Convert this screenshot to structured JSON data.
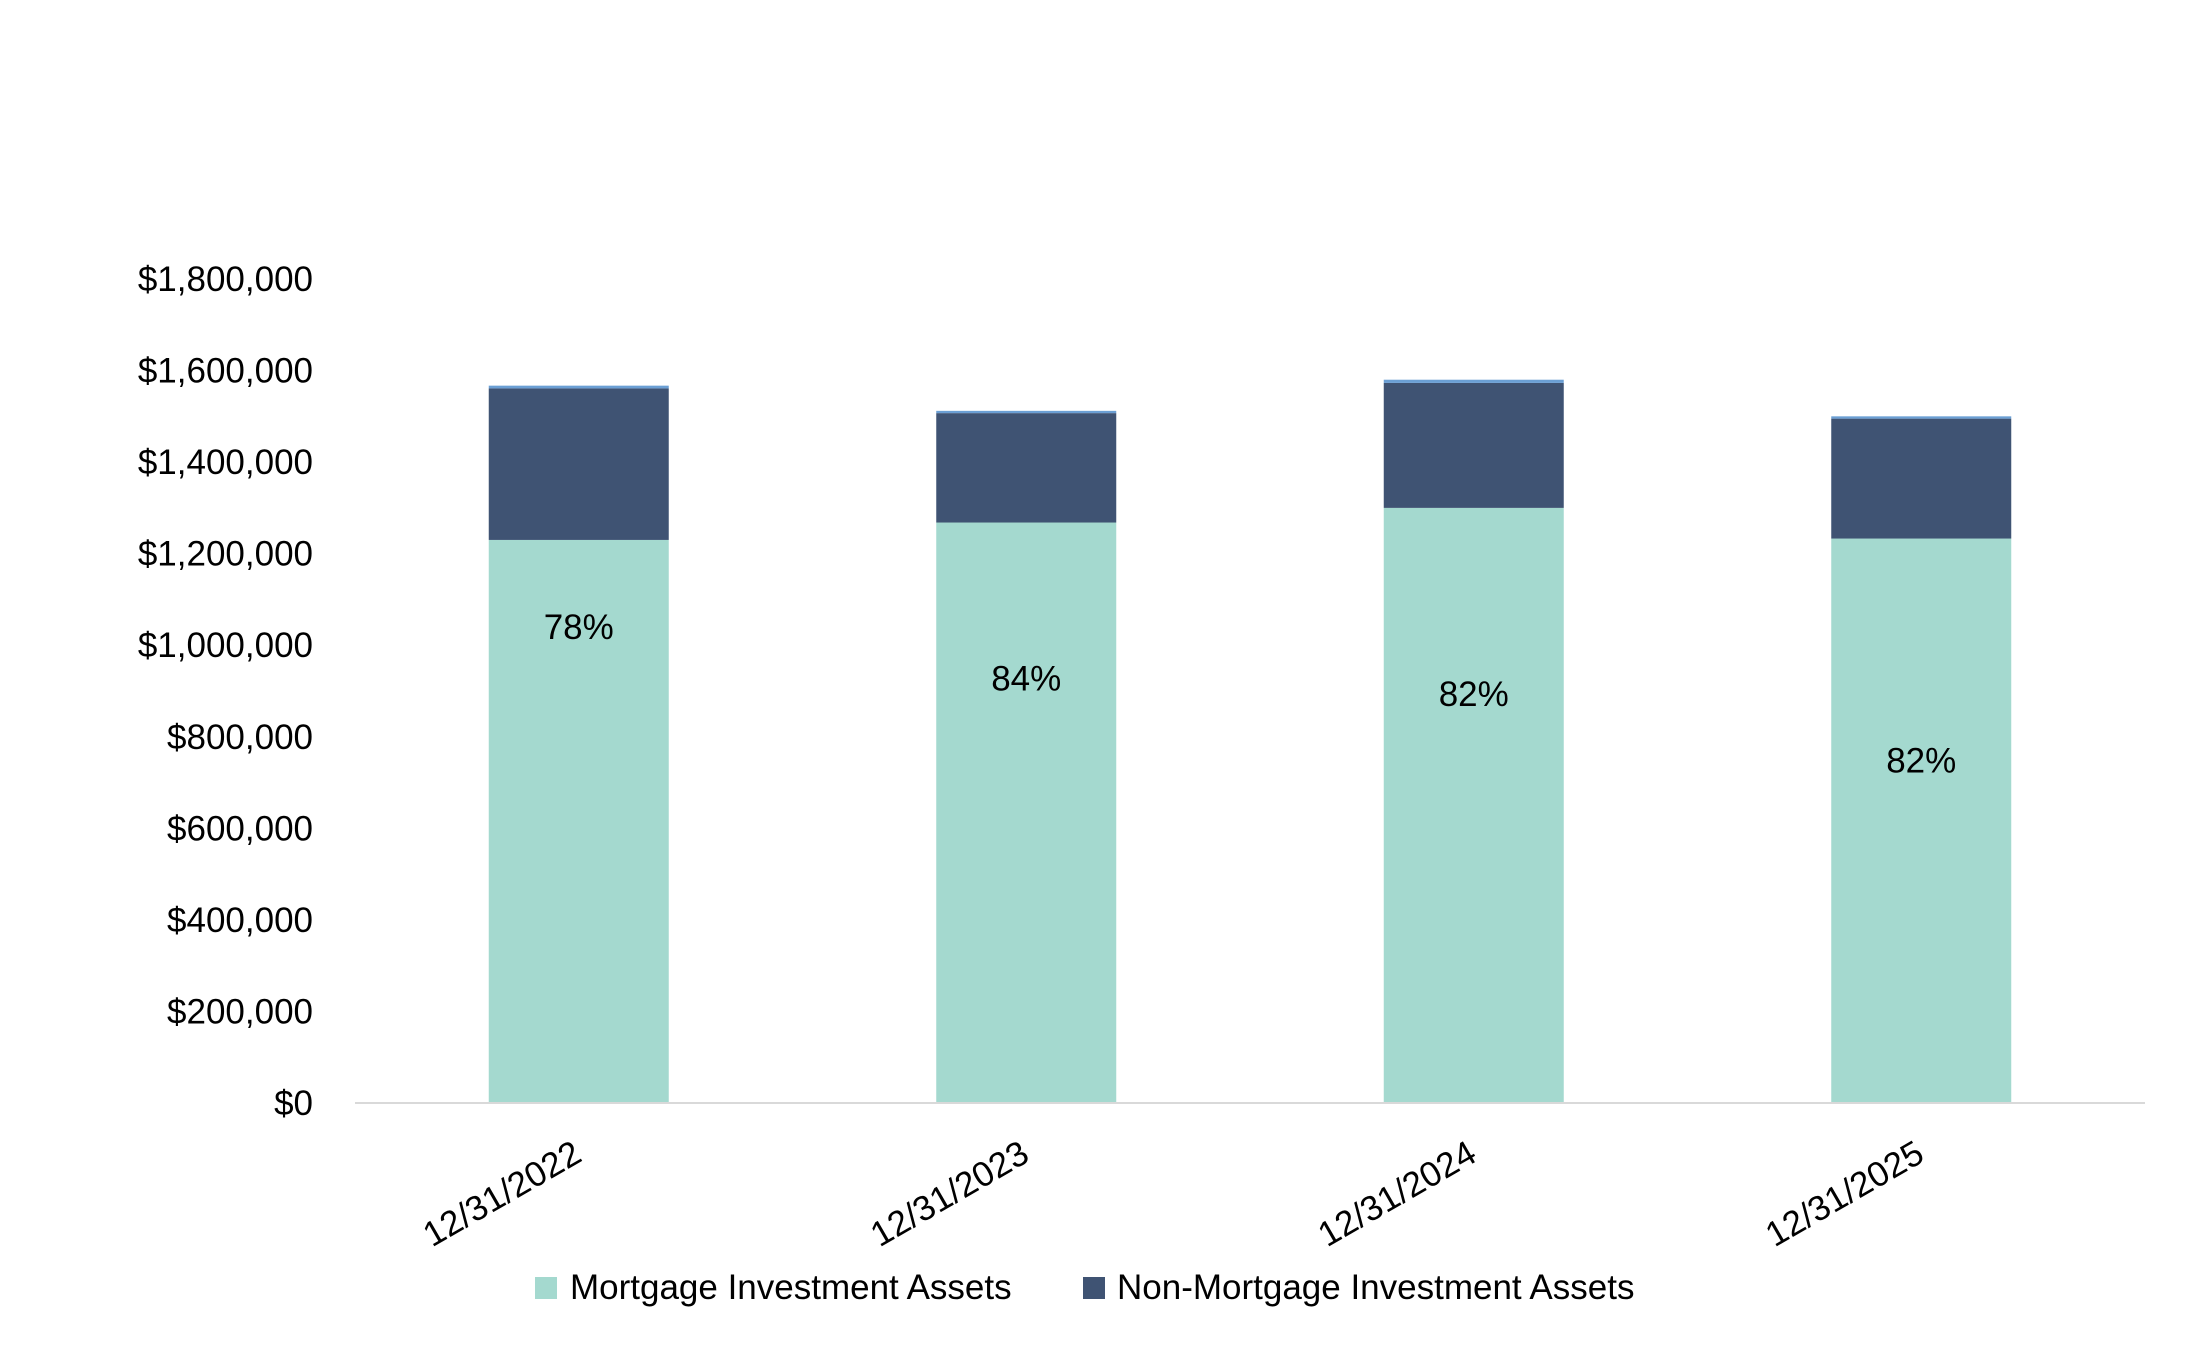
{
  "chart_data": {
    "type": "bar",
    "stacked": true,
    "title": "",
    "xlabel": "",
    "ylabel": "",
    "categories": [
      "12/31/2022",
      "12/31/2023",
      "12/31/2024",
      "12/31/2025"
    ],
    "ylim": [
      0,
      1800000
    ],
    "yticks": [
      0,
      200000,
      400000,
      600000,
      800000,
      1000000,
      1200000,
      1400000,
      1600000,
      1800000
    ],
    "ytick_labels": [
      "$0",
      "$200,000",
      "$400,000",
      "$600,000",
      "$800,000",
      "$1,000,000",
      "$1,200,000",
      "$1,400,000",
      "$1,600,000",
      "$1,800,000"
    ],
    "grid": false,
    "legend_position": "bottom",
    "series": [
      {
        "name": "Mortgage Investment Assets",
        "color": "#a4d9cf",
        "values": [
          1230000,
          1268000,
          1300000,
          1233000
        ],
        "show_in_legend": true
      },
      {
        "name": "Non-Mortgage Investment Assets",
        "color": "#3f5373",
        "values": [
          331000,
          239000,
          273000,
          262000
        ],
        "show_in_legend": true
      },
      {
        "name": "Other",
        "color": "#6b9fd4",
        "values": [
          6000,
          5000,
          7000,
          5000
        ],
        "show_in_legend": false
      }
    ],
    "data_labels": [
      "78%",
      "84%",
      "82%",
      "82%"
    ],
    "axis_color": "#d9d9d9"
  }
}
